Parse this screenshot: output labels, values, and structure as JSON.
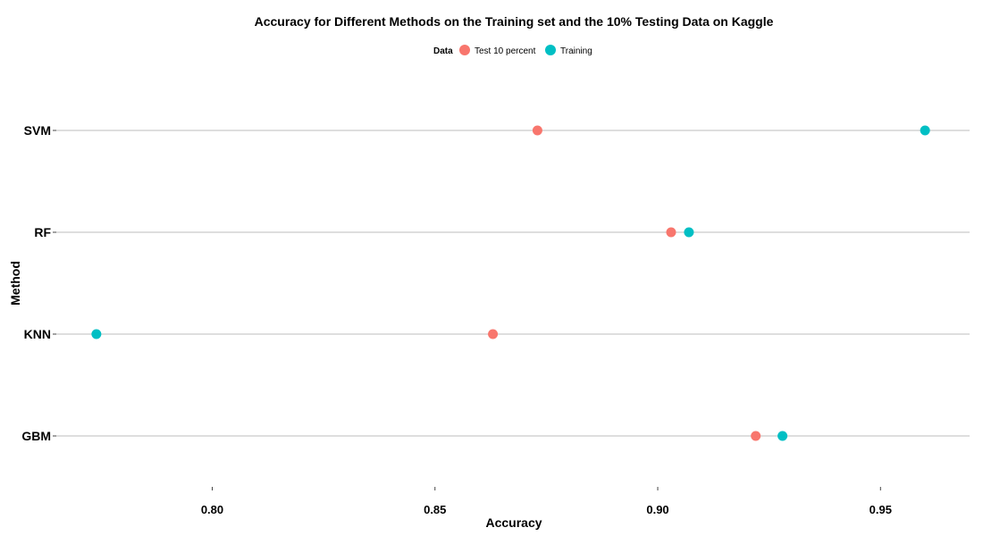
{
  "chart_data": {
    "type": "scatter",
    "title": "Accuracy for Different Methods on the Training set and the 10% Testing Data on Kaggle",
    "xlabel": "Accuracy",
    "ylabel": "Method",
    "categories": [
      "GBM",
      "KNN",
      "RF",
      "SVM"
    ],
    "xlim": [
      0.765,
      0.97
    ],
    "xticks": [
      0.8,
      0.85,
      0.9,
      0.95
    ],
    "xtick_labels": [
      "0.80",
      "0.85",
      "0.90",
      "0.95"
    ],
    "grid": "horizontal",
    "legend": {
      "title": "Data",
      "placement": "top-center",
      "entries": [
        "Test 10 percent",
        "Training"
      ]
    },
    "series": [
      {
        "name": "Test 10 percent",
        "color": "#F8766D",
        "values": [
          0.922,
          0.863,
          0.903,
          0.873
        ]
      },
      {
        "name": "Training",
        "color": "#00BFC4",
        "values": [
          0.928,
          0.774,
          0.907,
          0.96
        ]
      }
    ]
  }
}
